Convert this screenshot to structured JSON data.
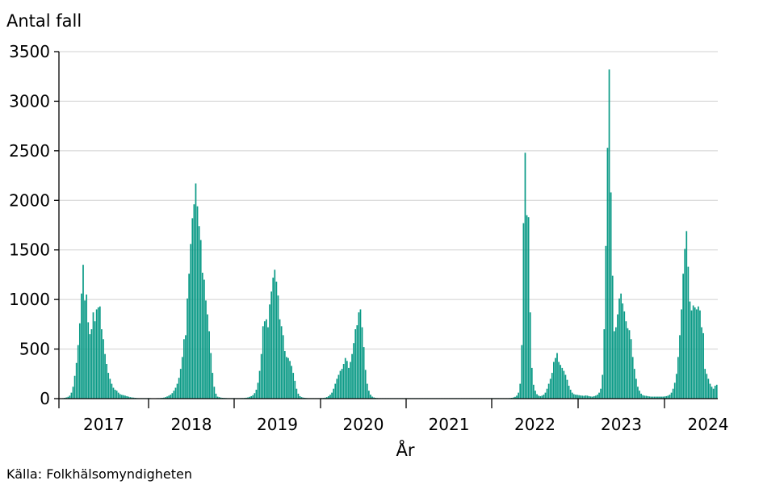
{
  "chart_data": {
    "type": "bar",
    "ylabel": "Antal fall",
    "xlabel": "År",
    "source": "Källa: Folkhälsomyndigheten",
    "ylim": [
      0,
      3500
    ],
    "yticks": [
      "0",
      "500",
      "1000",
      "1500",
      "2000",
      "2500",
      "3000",
      "3500"
    ],
    "xtick_labels": [
      "2017",
      "2018",
      "2019",
      "2020",
      "2021",
      "2022",
      "2023",
      "2024"
    ],
    "grid": true,
    "bar_color": "#0a9a86",
    "interval": "weekly",
    "start": "2016-W27",
    "values": [
      2,
      3,
      5,
      8,
      12,
      18,
      30,
      60,
      120,
      230,
      360,
      540,
      760,
      1060,
      1350,
      990,
      1050,
      770,
      650,
      700,
      870,
      780,
      900,
      920,
      930,
      700,
      600,
      450,
      350,
      260,
      200,
      150,
      110,
      90,
      80,
      60,
      45,
      38,
      35,
      30,
      25,
      20,
      15,
      12,
      10,
      8,
      6,
      5,
      5,
      5,
      5,
      5,
      5,
      6,
      5,
      4,
      4,
      4,
      5,
      5,
      6,
      8,
      10,
      15,
      22,
      30,
      40,
      55,
      80,
      110,
      150,
      210,
      300,
      420,
      600,
      640,
      1010,
      1260,
      1560,
      1820,
      1960,
      2170,
      1940,
      1740,
      1600,
      1270,
      1200,
      990,
      850,
      680,
      460,
      260,
      120,
      50,
      20,
      15,
      10,
      8,
      7,
      6,
      5,
      5,
      5,
      5,
      5,
      5,
      5,
      5,
      6,
      6,
      7,
      9,
      12,
      18,
      25,
      35,
      55,
      90,
      160,
      280,
      450,
      730,
      780,
      800,
      720,
      950,
      1080,
      1220,
      1300,
      1180,
      1040,
      800,
      730,
      640,
      480,
      420,
      410,
      380,
      330,
      260,
      180,
      100,
      50,
      25,
      15,
      10,
      8,
      6,
      5,
      5,
      5,
      5,
      5,
      5,
      5,
      5,
      6,
      7,
      10,
      15,
      25,
      40,
      60,
      100,
      150,
      200,
      240,
      280,
      300,
      350,
      410,
      380,
      310,
      370,
      450,
      560,
      700,
      740,
      870,
      900,
      720,
      520,
      290,
      150,
      80,
      40,
      20,
      12,
      8,
      6,
      5,
      5,
      5,
      5,
      5,
      5,
      5,
      5,
      5,
      5,
      5,
      5,
      5,
      5,
      5,
      5,
      5,
      5,
      5,
      5,
      5,
      5,
      5,
      5,
      5,
      5,
      5,
      5,
      5,
      5,
      5,
      5,
      5,
      5,
      5,
      5,
      5,
      5,
      5,
      5,
      5,
      5,
      5,
      5,
      5,
      5,
      5,
      5,
      5,
      5,
      5,
      5,
      5,
      5,
      5,
      5,
      5,
      5,
      5,
      5,
      5,
      5,
      5,
      5,
      5,
      5,
      5,
      5,
      5,
      5,
      5,
      5,
      5,
      5,
      5,
      5,
      5,
      5,
      6,
      8,
      12,
      18,
      30,
      60,
      150,
      540,
      1770,
      2480,
      1850,
      1830,
      870,
      310,
      140,
      80,
      45,
      30,
      25,
      30,
      40,
      60,
      100,
      150,
      200,
      260,
      370,
      410,
      460,
      370,
      340,
      310,
      280,
      240,
      190,
      130,
      90,
      60,
      45,
      40,
      38,
      35,
      32,
      30,
      28,
      32,
      30,
      25,
      22,
      20,
      25,
      30,
      40,
      60,
      100,
      240,
      700,
      1540,
      2530,
      3320,
      2080,
      1240,
      680,
      720,
      850,
      1010,
      1060,
      960,
      880,
      780,
      710,
      690,
      600,
      420,
      300,
      200,
      120,
      80,
      50,
      35,
      30,
      28,
      25,
      22,
      20,
      20,
      20,
      20,
      20,
      20,
      20,
      20,
      22,
      25,
      30,
      40,
      60,
      100,
      160,
      250,
      420,
      640,
      900,
      1260,
      1510,
      1690,
      1330,
      980,
      890,
      940,
      920,
      900,
      930,
      890,
      720,
      660,
      300,
      250,
      200,
      150,
      120,
      100,
      130,
      140
    ]
  }
}
